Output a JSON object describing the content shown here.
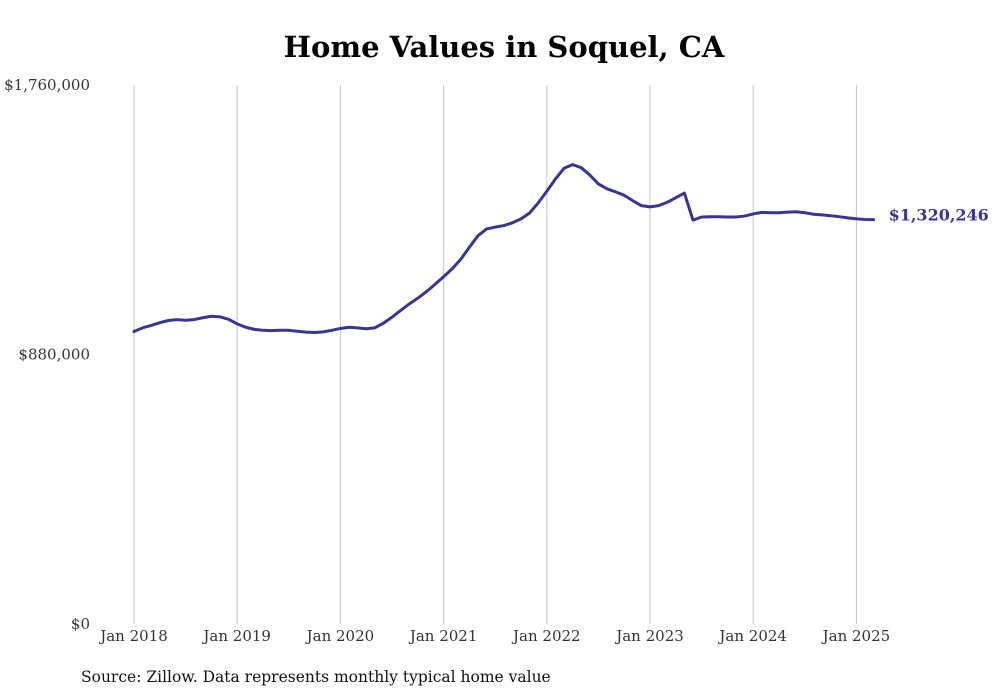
{
  "chart_data": {
    "type": "line",
    "title": "Home Values in Soquel, CA",
    "xlabel": "",
    "ylabel": "",
    "ylim": [
      0,
      1760000
    ],
    "yticks": [
      {
        "value": 0,
        "label": "$0"
      },
      {
        "value": 880000,
        "label": "$880,000"
      },
      {
        "value": 1760000,
        "label": "$1,760,000"
      }
    ],
    "xticks": [
      "Jan 2018",
      "Jan 2019",
      "Jan 2020",
      "Jan 2021",
      "Jan 2022",
      "Jan 2023",
      "Jan 2024",
      "Jan 2025"
    ],
    "x_start": "2018-01",
    "grid": "vertical",
    "series": [
      {
        "color": "#3a3493",
        "end_label": "$1,320,246",
        "x": [
          "2018-01",
          "2018-02",
          "2018-03",
          "2018-04",
          "2018-05",
          "2018-06",
          "2018-07",
          "2018-08",
          "2018-09",
          "2018-10",
          "2018-11",
          "2018-12",
          "2019-01",
          "2019-02",
          "2019-03",
          "2019-04",
          "2019-05",
          "2019-06",
          "2019-07",
          "2019-08",
          "2019-09",
          "2019-10",
          "2019-11",
          "2019-12",
          "2020-01",
          "2020-02",
          "2020-03",
          "2020-04",
          "2020-05",
          "2020-06",
          "2020-07",
          "2020-08",
          "2020-09",
          "2020-10",
          "2020-11",
          "2020-12",
          "2021-01",
          "2021-02",
          "2021-03",
          "2021-04",
          "2021-05",
          "2021-06",
          "2021-07",
          "2021-08",
          "2021-09",
          "2021-10",
          "2021-11",
          "2021-12",
          "2022-01",
          "2022-02",
          "2022-03",
          "2022-04",
          "2022-05",
          "2022-06",
          "2022-07",
          "2022-08",
          "2022-09",
          "2022-10",
          "2022-11",
          "2022-12",
          "2023-01",
          "2023-02",
          "2023-03",
          "2023-04",
          "2023-05",
          "2023-06",
          "2023-07",
          "2023-08",
          "2023-09",
          "2023-10",
          "2023-11",
          "2023-12",
          "2024-01",
          "2024-02",
          "2024-03",
          "2024-04",
          "2024-05",
          "2024-06",
          "2024-07",
          "2024-08",
          "2024-09",
          "2024-10",
          "2024-11",
          "2024-12",
          "2025-01",
          "2025-02",
          "2025-03"
        ],
        "values": [
          955000,
          967000,
          975000,
          984000,
          991000,
          994000,
          992000,
          994000,
          1000000,
          1005000,
          1003000,
          995000,
          980000,
          969000,
          962000,
          959000,
          958000,
          959000,
          959000,
          956000,
          953000,
          952000,
          954000,
          959000,
          965000,
          969000,
          967000,
          964000,
          967000,
          982000,
          1002000,
          1024000,
          1045000,
          1064000,
          1085000,
          1109000,
          1134000,
          1160000,
          1191000,
          1230000,
          1268000,
          1290000,
          1296000,
          1301000,
          1310000,
          1323000,
          1342000,
          1375000,
          1413000,
          1453000,
          1488000,
          1500000,
          1490000,
          1466000,
          1437000,
          1421000,
          1411000,
          1400000,
          1382000,
          1366000,
          1362000,
          1366000,
          1377000,
          1392000,
          1407000,
          1319000,
          1329000,
          1330000,
          1330000,
          1329000,
          1329000,
          1332000,
          1339000,
          1344000,
          1343000,
          1343000,
          1345000,
          1346000,
          1343000,
          1338000,
          1336000,
          1333000,
          1330000,
          1326000,
          1323000,
          1321000,
          1320246
        ]
      }
    ]
  },
  "source_note": "Source: Zillow. Data represents monthly typical home value"
}
